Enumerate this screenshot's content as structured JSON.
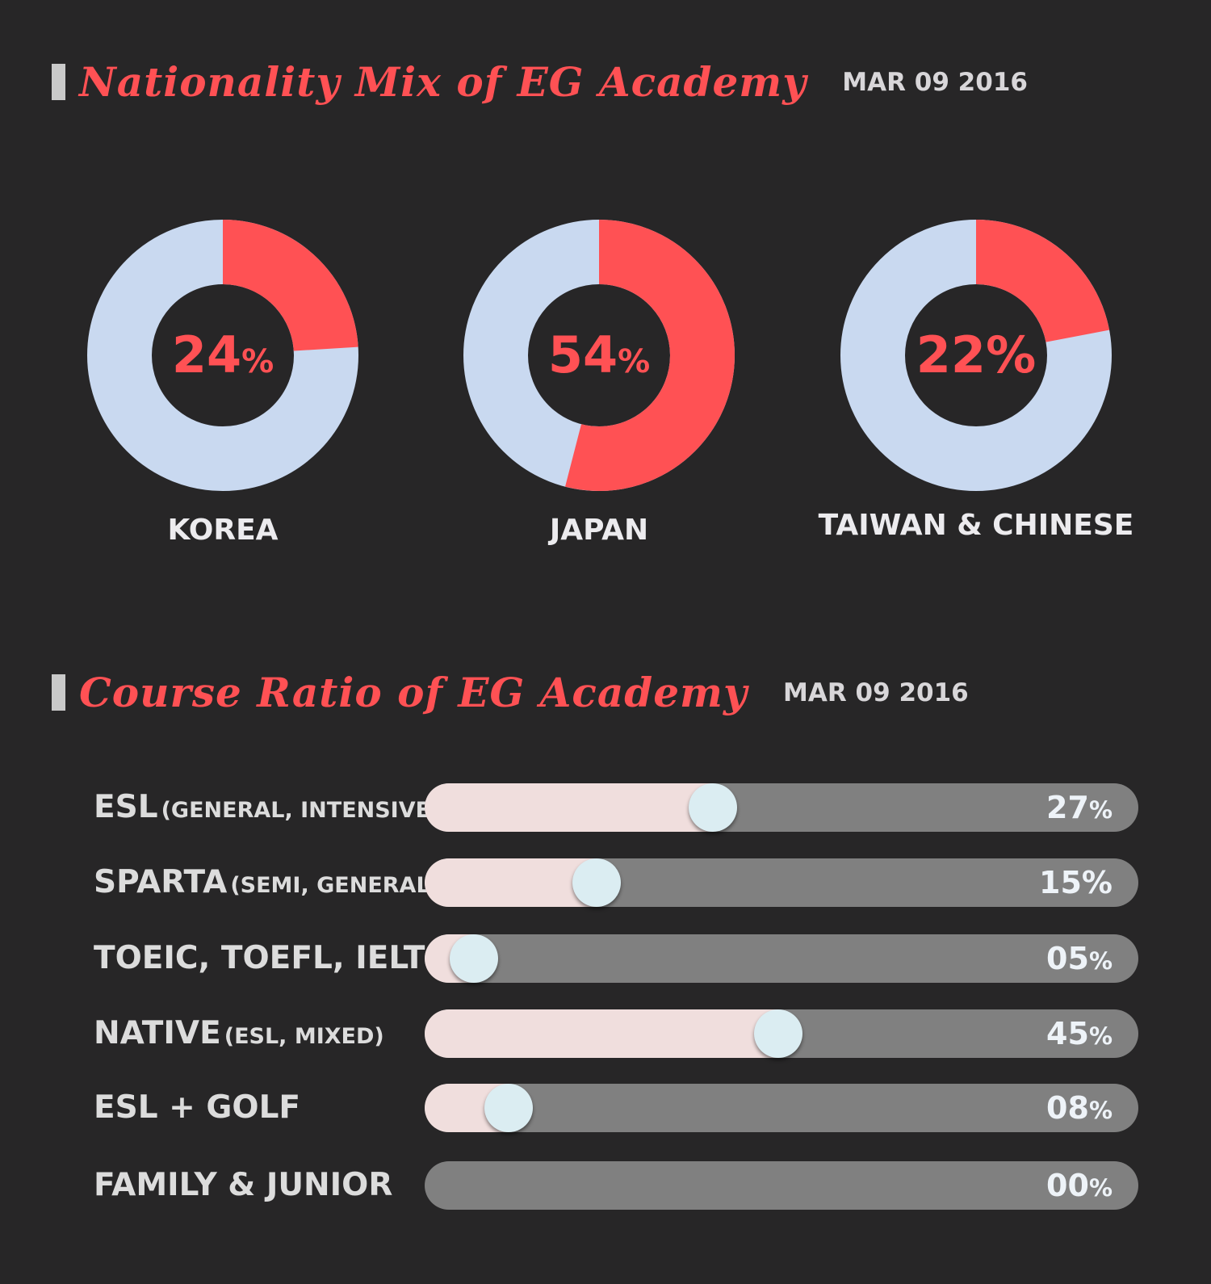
{
  "nationality": {
    "title": "Nationality Mix of EG Academy",
    "date": "MAR 09 2016"
  },
  "course": {
    "title": "Course Ratio of EG Academy",
    "date": "MAR 09 2016"
  },
  "colors": {
    "accent": "#ff5154",
    "donut_rest": "#c9d9f0",
    "track": "#808080",
    "fill": "#f0dedd",
    "knob": "#dbedf2"
  },
  "chart_data": [
    {
      "type": "pie",
      "style": "donut",
      "categories": [
        "KOREA",
        "JAPAN",
        "TAIWAN & CHINESE"
      ],
      "values": [
        24,
        54,
        22
      ],
      "value_labels": [
        "24",
        "54",
        "22"
      ],
      "unit": "%"
    },
    {
      "type": "bar",
      "orientation": "horizontal",
      "categories": [
        {
          "main": "ESL",
          "sub": "(GENERAL, INTENSIVE)"
        },
        {
          "main": "SPARTA",
          "sub": "(SEMI, GENERAL)"
        },
        {
          "main": "TOEIC, TOEFL, IELTS",
          "sub": ""
        },
        {
          "main": "NATIVE",
          "sub": "(ESL, MIXED)"
        },
        {
          "main": "ESL + GOLF",
          "sub": ""
        },
        {
          "main": "FAMILY & JUNIOR",
          "sub": ""
        }
      ],
      "values": [
        27,
        15,
        5,
        45,
        8,
        0
      ],
      "value_labels": [
        "27",
        "15",
        "05",
        "45",
        "08",
        "00"
      ],
      "unit": "%",
      "xlim": [
        0,
        100
      ]
    }
  ]
}
